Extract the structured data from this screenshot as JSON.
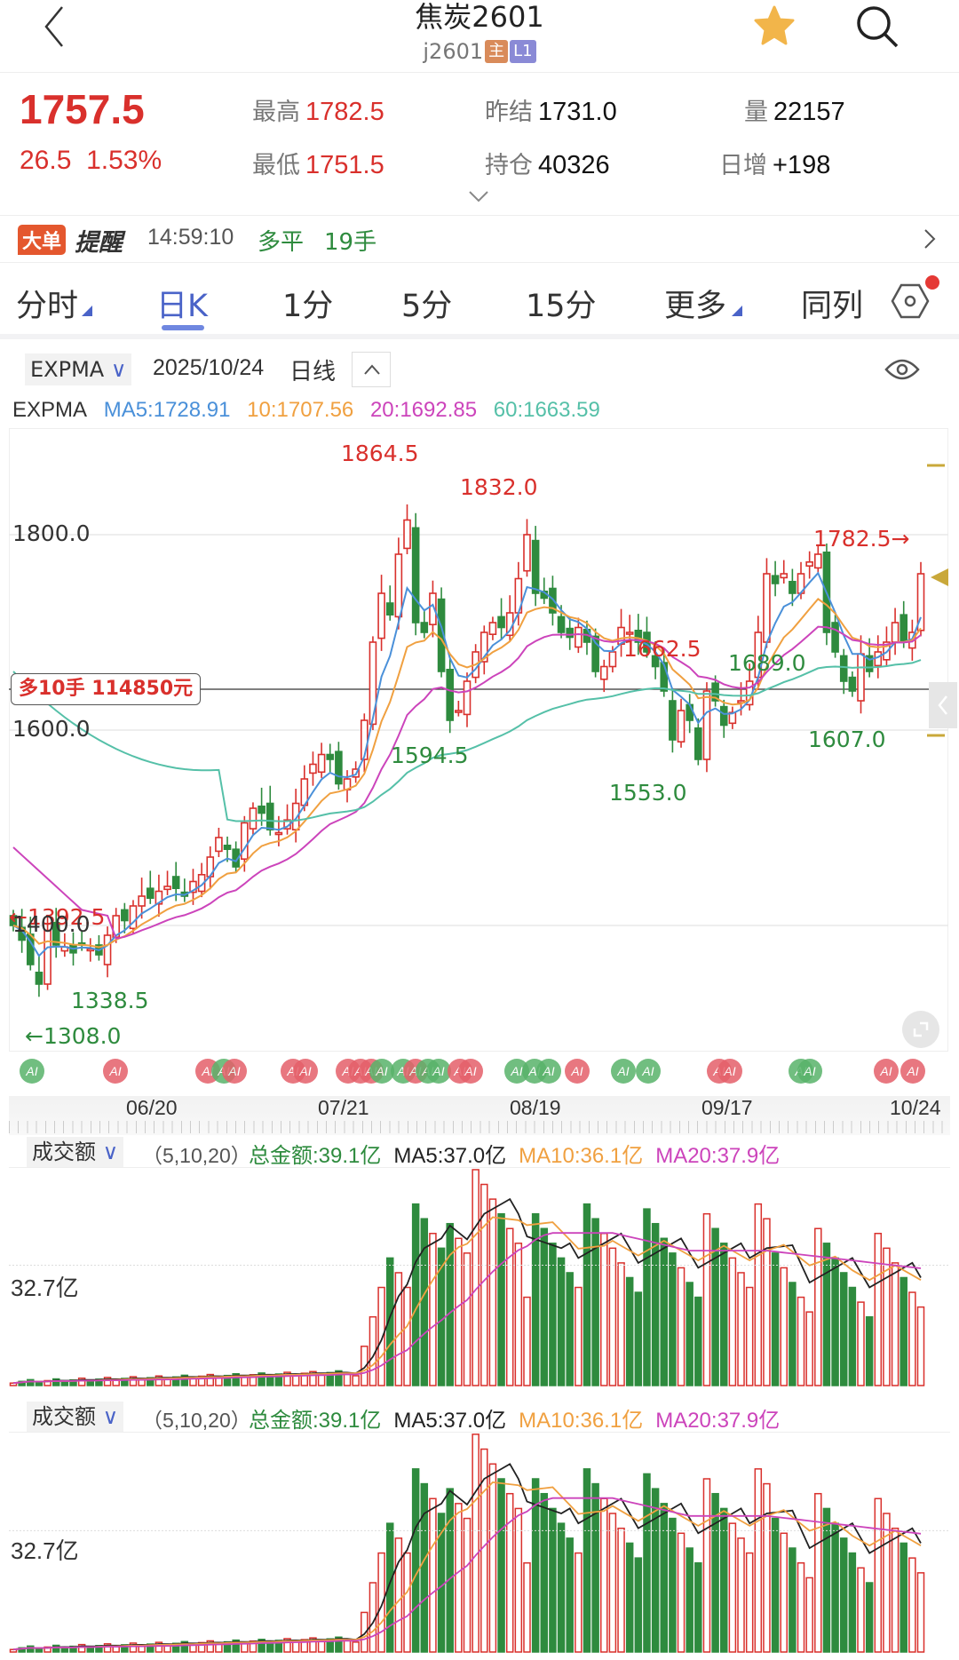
{
  "header": {
    "title": "焦炭2601",
    "symbol": "j2601",
    "tag_main": "主",
    "tag_level": "L1",
    "colors": {
      "tag_main": "#d98b5a",
      "tag_level": "#8a8ad6",
      "star": "#f2b54a"
    }
  },
  "quote": {
    "last_price": "1757.5",
    "change": "26.5",
    "change_pct": "1.53%",
    "high_label": "最高",
    "high": "1782.5",
    "low_label": "最低",
    "low": "1751.5",
    "prev_settle_label": "昨结",
    "prev_settle": "1731.0",
    "open_interest_label": "持仓",
    "open_interest": "40326",
    "volume_label": "量",
    "volume": "22157",
    "daily_change_label": "日增",
    "daily_change": "+198"
  },
  "alert": {
    "badge": "大单",
    "title": "提醒",
    "time": "14:59:10",
    "type": "多平",
    "qty": "19手"
  },
  "tabs": [
    {
      "label": "分时",
      "has_menu": true
    },
    {
      "label": "日K",
      "active": true
    },
    {
      "label": "1分"
    },
    {
      "label": "5分"
    },
    {
      "label": "15分"
    },
    {
      "label": "更多",
      "has_menu": true
    },
    {
      "label": "同列"
    }
  ],
  "indicator": {
    "selected": "EXPMA",
    "date": "2025/10/24",
    "period": "日线",
    "legend_name": "EXPMA",
    "ma5": "MA5:1728.91",
    "ma10": "10:1707.56",
    "ma20": "20:1692.85",
    "ma60": "60:1663.59",
    "colors": {
      "ma5": "#4a90d9",
      "ma10": "#f0a040",
      "ma20": "#cc44bb",
      "ma60": "#55c0a8",
      "up": "#d9302c",
      "down": "#2e8b3e"
    }
  },
  "price_chart": {
    "y_axis_labels": [
      "1800.0",
      "1600.0",
      "1400.0"
    ],
    "position_label": "多10手 114850元",
    "annotations": [
      {
        "text": "1864.5",
        "color": "red"
      },
      {
        "text": "1832.0",
        "color": "red"
      },
      {
        "text": "1662.5",
        "color": "red"
      },
      {
        "text": "1782.5→",
        "color": "red"
      },
      {
        "text": "←1392.5",
        "color": "red"
      },
      {
        "text": "1594.5",
        "color": "green"
      },
      {
        "text": "1553.0",
        "color": "green"
      },
      {
        "text": "1689.0",
        "color": "green"
      },
      {
        "text": "1607.0",
        "color": "green"
      },
      {
        "text": "1338.5",
        "color": "green"
      },
      {
        "text": "←1308.0",
        "color": "green"
      }
    ]
  },
  "ai_badges": {
    "label": "AI"
  },
  "date_axis": [
    "06/20",
    "07/21",
    "08/19",
    "09/17",
    "10/24"
  ],
  "volume_panel": {
    "selector": "成交额",
    "params": "（5,10,20）",
    "total": "总金额:39.1亿",
    "ma5": "MA5:37.0亿",
    "ma10": "MA10:36.1亿",
    "ma20": "MA20:37.9亿",
    "y_label": "32.7亿"
  },
  "chart_data": {
    "type": "candlestick",
    "title": "焦炭2601 日K",
    "x_ticks": [
      "06/20",
      "07/21",
      "08/19",
      "09/17",
      "10/24"
    ],
    "y_ticks": [
      1400,
      1600,
      1800
    ],
    "marked_high": 1864.5,
    "marked_low": 1308.0,
    "last_close": 1757.5,
    "expma": {
      "MA5": 1728.91,
      "MA10": 1707.56,
      "MA20": 1692.85,
      "MA60": 1663.59
    },
    "volume": {
      "total": "39.1亿",
      "MA5": "37.0亿",
      "MA10": "36.1亿",
      "MA20": "37.9亿",
      "ref_level": "32.7亿"
    }
  }
}
